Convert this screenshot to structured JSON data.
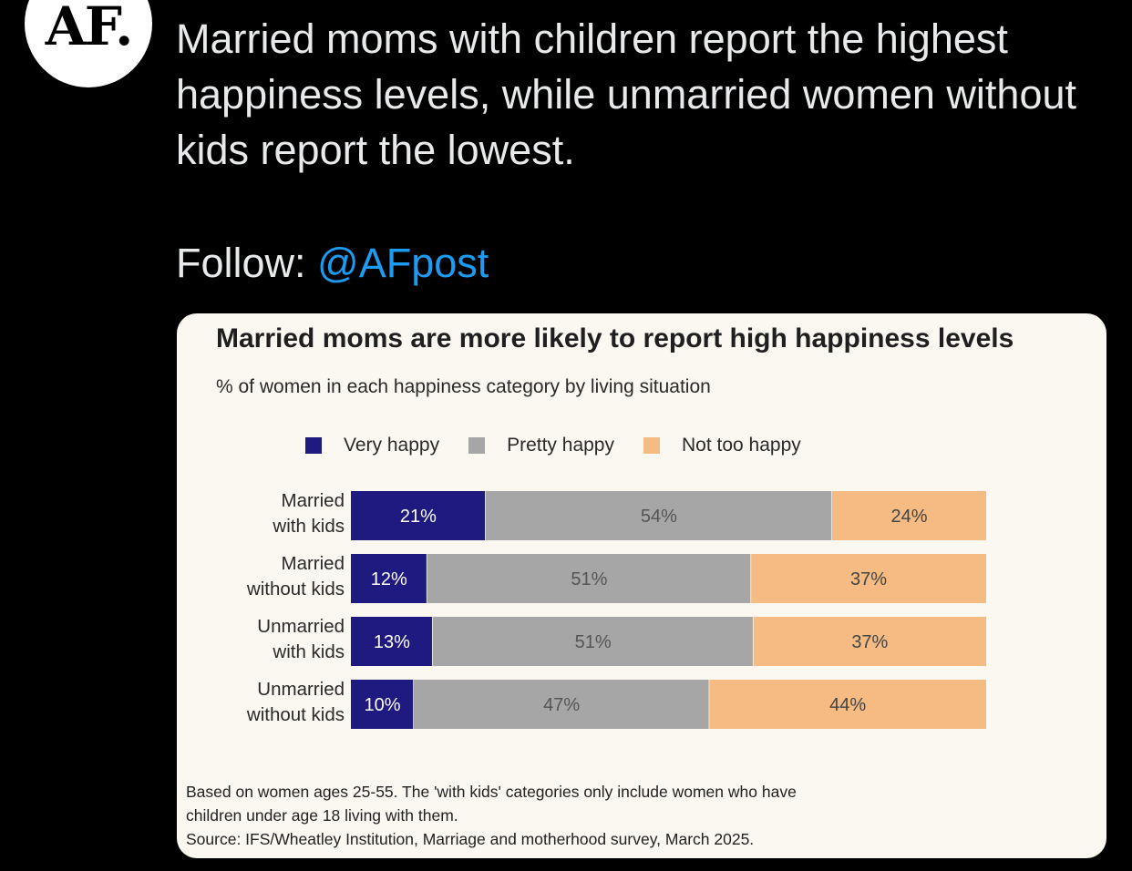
{
  "tweet": {
    "avatar_text": "AF.",
    "text": "Married moms with children report the highest happiness levels, while unmarried women without kids report the lowest.",
    "follow_label": "Follow: ",
    "follow_handle": "@AFpost"
  },
  "colors": {
    "very_happy": "#1f1a80",
    "pretty_happy": "#a6a6a6",
    "not_too_happy": "#f5bb82",
    "link": "#1d9bf0"
  },
  "chart_data": {
    "type": "bar",
    "orientation": "horizontal",
    "stacked": true,
    "title": "Married moms are more likely to report high happiness levels",
    "subtitle": "% of women in each happiness category by living situation",
    "categories": [
      [
        "Married",
        "with kids"
      ],
      [
        "Married",
        "without kids"
      ],
      [
        "Unmarried",
        "with kids"
      ],
      [
        "Unmarried",
        "without kids"
      ]
    ],
    "series": [
      {
        "name": "Very happy",
        "values": [
          21,
          12,
          13,
          10
        ],
        "labels": [
          "21%",
          "12%",
          "13%",
          "10%"
        ]
      },
      {
        "name": "Pretty happy",
        "values": [
          54,
          51,
          51,
          47
        ],
        "labels": [
          "54%",
          "51%",
          "51%",
          "47%"
        ]
      },
      {
        "name": "Not too happy",
        "values": [
          24,
          37,
          37,
          44
        ],
        "labels": [
          "24%",
          "37%",
          "37%",
          "44%"
        ]
      }
    ],
    "xlim": [
      0,
      100
    ],
    "legend_position": "top",
    "footnote": [
      "Based on women ages 25-55. The 'with kids' categories only include women who have",
      "children under age 18 living with them.",
      "Source: IFS/Wheatley Institution, Marriage and motherhood survey, March 2025."
    ]
  }
}
